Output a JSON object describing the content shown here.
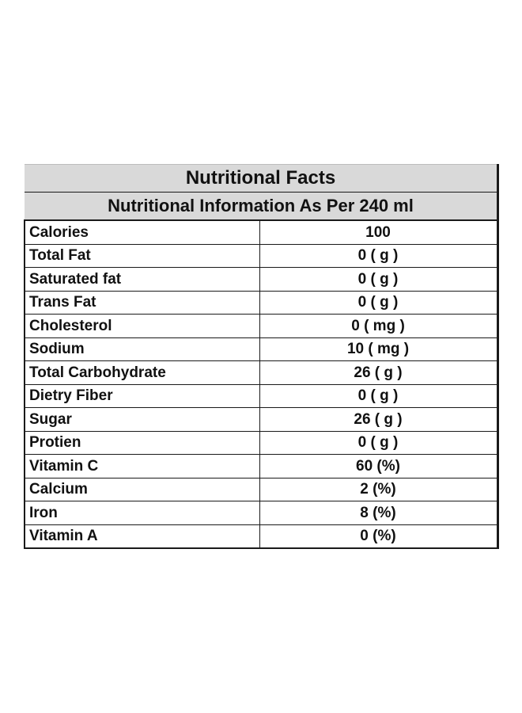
{
  "table": {
    "title": "Nutritional Facts",
    "subtitle": "Nutritional Information As Per 240 ml",
    "rows": [
      {
        "name": "Calories",
        "value": "100"
      },
      {
        "name": "Total Fat",
        "value": "0 ( g )"
      },
      {
        "name": "Saturated fat",
        "value": "0 ( g )"
      },
      {
        "name": "Trans Fat",
        "value": "0 ( g )"
      },
      {
        "name": "Cholesterol",
        "value": "0 ( mg )"
      },
      {
        "name": "Sodium",
        "value": "10 ( mg )"
      },
      {
        "name": "Total Carbohydrate",
        "value": "26 ( g )"
      },
      {
        "name": "Dietry Fiber",
        "value": "0 ( g )"
      },
      {
        "name": "Sugar",
        "value": "26 ( g )"
      },
      {
        "name": "Protien",
        "value": "0 ( g )"
      },
      {
        "name": "Vitamin C",
        "value": "60 (%)"
      },
      {
        "name": "Calcium",
        "value": "2 (%)"
      },
      {
        "name": "Iron",
        "value": "8 (%)"
      },
      {
        "name": "Vitamin A",
        "value": "0 (%)"
      }
    ]
  },
  "colors": {
    "header_background": "#d9d9d9",
    "border": "#1a1a1a",
    "text": "#111111"
  }
}
